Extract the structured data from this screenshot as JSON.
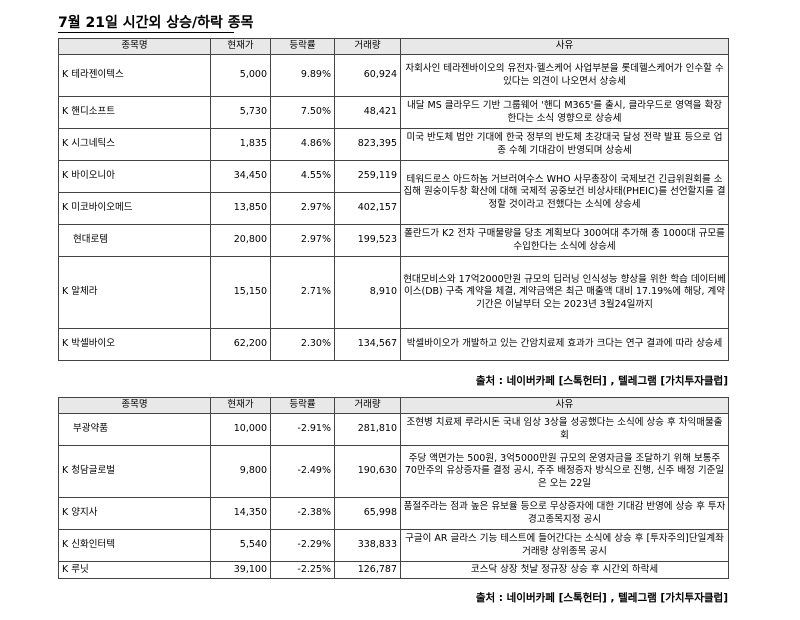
{
  "title": "7월 21일  시간외 상승/하락 종목",
  "headers": {
    "name": "종목명",
    "price": "현재가",
    "rate": "등락률",
    "volume": "거래량",
    "reason": "사유"
  },
  "rising": [
    {
      "name": "K 테라젠이텍스",
      "price": "5,000",
      "rate": "9.89%",
      "volume": "60,924",
      "reason": "자회사인 테라젠바이오의 유전자·헬스케어 사업부분을 롯데헬스케어가 인수할 수있다는 의견이 나오면서 상승세"
    },
    {
      "name": "K 핸디소프트",
      "price": "5,730",
      "rate": "7.50%",
      "volume": "48,421",
      "reason": "내달 MS 클라우드 기반 그룹웨어 '핸디 M365'를 출시, 클라우드로 영역을 확장한다는 소식 영향으로 상승세"
    },
    {
      "name": "K 시그네틱스",
      "price": "1,835",
      "rate": "4.86%",
      "volume": "823,395",
      "reason": "미국 반도체 법안 기대에 한국 정부의 반도체 초강대국 달성 전략 발표 등으로 업종 수혜 기대감이 반영되며 상승세"
    },
    {
      "name": "K 바이오니아",
      "price": "34,450",
      "rate": "4.55%",
      "volume": "259,119",
      "reason": ""
    },
    {
      "name": "K 미코바이오메드",
      "price": "13,850",
      "rate": "2.97%",
      "volume": "402,157",
      "reason": ""
    },
    {
      "name": "현대로템",
      "price": "20,800",
      "rate": "2.97%",
      "volume": "199,523",
      "reason": "폴란드가 K2 전차 구매물량을 당초 계획보다 300여대 추가해 총 1000대 규모를 수입한다는 소식에 상승세"
    },
    {
      "name": "K 알체라",
      "price": "15,150",
      "rate": "2.71%",
      "volume": "8,910",
      "reason": "현대모비스와 17억2000만원 규모의 딥러닝 인식성능 향상을 위한 학습 데이터베이스(DB) 구축 계약을 체결, 계약금액은 최근 매출액 대비 17.19%에 해당, 계약기간은 이날부터 오는 2023년 3월24일까지"
    },
    {
      "name": "K 박셀바이오",
      "price": "62,200",
      "rate": "2.30%",
      "volume": "134,567",
      "reason": "박셀바이오가 개발하고 있는 간암치료제 효과가 크다는 연구 결과에 따라 상승세"
    }
  ],
  "shared_reason": "테워드로스 아드하놈 거브러여수스 WHO 사무총장이 국제보건 긴급위원회를 소집해 원숭이두창 확산에 대해 국제적 공중보건 비상사태(PHEIC)를 선언할지를 결정할 것이라고 전했다는 소식에 상승세",
  "source_up": "출처 : 네이버카페 [스톡헌터] , 텔레그램 [가치투자클럽]",
  "falling": [
    {
      "name": "부광약품",
      "price": "10,000",
      "rate": "-2.91%",
      "volume": "281,810",
      "reason": "조현병 치료제 루라시돈 국내 임상 3상을 성공했다는 소식에 상승 후 차익매물출회"
    },
    {
      "name": "K 청담글로벌",
      "price": "9,800",
      "rate": "-2.49%",
      "volume": "190,630",
      "reason": "주당 액면가는 500원, 3억5000만원 규모의 운영자금을 조달하기 위해 보통주 70만주의 유상증자를 결정 공시, 주주 배정증자 방식으로 진행, 신주 배정 기준일은 오는 22일"
    },
    {
      "name": "K 양지사",
      "price": "14,350",
      "rate": "-2.38%",
      "volume": "65,998",
      "reason": "품절주라는 점과 높은 유보율 등으로 무상증자에 대한 기대감 반영에 상승 후 투자경고종목지정 공시"
    },
    {
      "name": "K 신화인터텍",
      "price": "5,540",
      "rate": "-2.29%",
      "volume": "338,833",
      "reason": "구글이 AR 글라스 기능 테스트에 들어간다는 소식에 상승 후 [투자주의]단일계좌 거래량 상위종목 공시"
    },
    {
      "name": "K 루닛",
      "price": "39,100",
      "rate": "-2.25%",
      "volume": "126,787",
      "reason": "코스닥 상장 첫날 정규장 상승 후 시간외 하락세"
    }
  ],
  "source_down": "출처 : 네이버카페 [스톡헌터] , 텔레그램 [가치투자클럽]"
}
